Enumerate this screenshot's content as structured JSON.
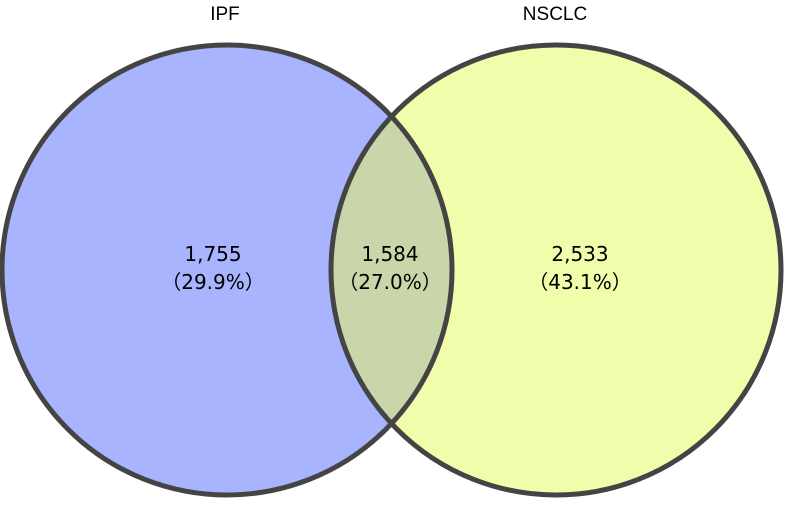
{
  "sets": [
    {
      "label": "IPF",
      "color": "#a9b4ff"
    },
    {
      "label": "NSCLC",
      "color": "#f1fdaa"
    }
  ],
  "regions": {
    "ipf_only": {
      "count": "1,755",
      "percent": "（29.9%）"
    },
    "overlap": {
      "count": "1,584",
      "percent": "（27.0%）"
    },
    "nsclc_only": {
      "count": "2,533",
      "percent": "（43.1%）"
    }
  },
  "overlap_color": "#c8d6aa",
  "outline_color": "#444444"
}
